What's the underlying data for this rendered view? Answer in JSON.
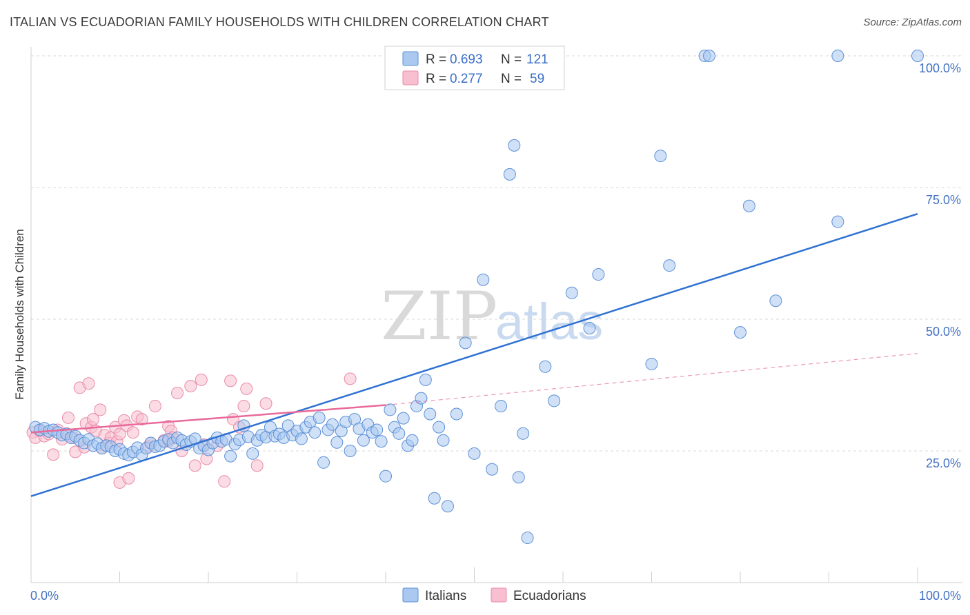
{
  "title": "ITALIAN VS ECUADORIAN FAMILY HOUSEHOLDS WITH CHILDREN CORRELATION CHART",
  "source": "Source: ZipAtlas.com",
  "watermark": {
    "zip": "ZIP",
    "atlas": "atlas"
  },
  "legend": {
    "r_label": "R =",
    "n_label": "N =",
    "rows": [
      {
        "series": "Italians",
        "r": "0.693",
        "n": "121"
      },
      {
        "series": "Ecuadorians",
        "r": "0.277",
        "n": "59"
      }
    ]
  },
  "colors": {
    "italians_fill": "#aac8f0",
    "italians_stroke": "#5a8fd6",
    "italians_line": "#2f72d2",
    "ecuadorians_fill": "#f7bfd0",
    "ecuadorians_stroke": "#e98aa8",
    "ecuadorians_line": "#e8699a",
    "grid": "#d8d8d8",
    "axis_tick_text": "#4472c4"
  },
  "chart_data": {
    "type": "scatter",
    "title": "ITALIAN VS ECUADORIAN FAMILY HOUSEHOLDS WITH CHILDREN CORRELATION CHART",
    "xlabel": "",
    "ylabel": "Family Households with Children",
    "xlim": [
      0,
      100
    ],
    "ylim": [
      0,
      100
    ],
    "x_tick_labels": [
      "0.0%",
      "100.0%"
    ],
    "y_ticks": [
      25,
      50,
      75,
      100
    ],
    "y_tick_labels": [
      "25.0%",
      "50.0%",
      "75.0%",
      "100.0%"
    ],
    "legend_bottom": [
      "Italians",
      "Ecuadorians"
    ],
    "series": [
      {
        "name": "Italians",
        "r": 0.693,
        "n": 121,
        "trend": {
          "x": [
            0,
            100
          ],
          "y": [
            16.4,
            70.0
          ],
          "style": "solid"
        },
        "points": [
          [
            0.5,
            29.5
          ],
          [
            1,
            29
          ],
          [
            1.5,
            29.3
          ],
          [
            2,
            28.7
          ],
          [
            2.5,
            29
          ],
          [
            3,
            28.5
          ],
          [
            3.5,
            28
          ],
          [
            4,
            28.2
          ],
          [
            4.5,
            27.5
          ],
          [
            5,
            27.8
          ],
          [
            5.5,
            27
          ],
          [
            6,
            26.5
          ],
          [
            6.5,
            27.2
          ],
          [
            7,
            26
          ],
          [
            7.5,
            26.4
          ],
          [
            8,
            25.5
          ],
          [
            8.5,
            26
          ],
          [
            9,
            25.8
          ],
          [
            9.5,
            25
          ],
          [
            10,
            25.3
          ],
          [
            10.5,
            24.5
          ],
          [
            11,
            24.2
          ],
          [
            11.5,
            24.8
          ],
          [
            12,
            25.6
          ],
          [
            12.5,
            24.3
          ],
          [
            13,
            25.5
          ],
          [
            13.5,
            26.5
          ],
          [
            14,
            25.8
          ],
          [
            14.5,
            26
          ],
          [
            15,
            26.8
          ],
          [
            15.5,
            27.2
          ],
          [
            16,
            26.5
          ],
          [
            16.5,
            27.5
          ],
          [
            17,
            27
          ],
          [
            17.5,
            26.2
          ],
          [
            18,
            26.8
          ],
          [
            18.5,
            27.3
          ],
          [
            19,
            25.5
          ],
          [
            19.5,
            26
          ],
          [
            20,
            25.2
          ],
          [
            20.5,
            26.5
          ],
          [
            21,
            27.5
          ],
          [
            21.5,
            26.8
          ],
          [
            22,
            27.2
          ],
          [
            22.5,
            24
          ],
          [
            23,
            26.3
          ],
          [
            23.5,
            27.1
          ],
          [
            24,
            29.8
          ],
          [
            24.5,
            27.7
          ],
          [
            25,
            24.5
          ],
          [
            25.5,
            27
          ],
          [
            26,
            28
          ],
          [
            26.5,
            27.6
          ],
          [
            27,
            29.5
          ],
          [
            27.5,
            27.8
          ],
          [
            28,
            28.2
          ],
          [
            28.5,
            27.5
          ],
          [
            29,
            29.8
          ],
          [
            29.5,
            28
          ],
          [
            30,
            28.8
          ],
          [
            30.5,
            27.3
          ],
          [
            31,
            29.5
          ],
          [
            31.5,
            30.5
          ],
          [
            32,
            28.5
          ],
          [
            32.5,
            31.3
          ],
          [
            33,
            22.8
          ],
          [
            33.5,
            29
          ],
          [
            34,
            30
          ],
          [
            34.5,
            26.6
          ],
          [
            35,
            28.8
          ],
          [
            35.5,
            30.5
          ],
          [
            36,
            25
          ],
          [
            36.5,
            31
          ],
          [
            37,
            29.2
          ],
          [
            37.5,
            27
          ],
          [
            38,
            30
          ],
          [
            38.5,
            28.5
          ],
          [
            39,
            29
          ],
          [
            39.5,
            26.8
          ],
          [
            40,
            20.2
          ],
          [
            40.5,
            32.8
          ],
          [
            41,
            29.5
          ],
          [
            41.5,
            28.3
          ],
          [
            42,
            31.2
          ],
          [
            42.5,
            26
          ],
          [
            43,
            27
          ],
          [
            43.5,
            33.5
          ],
          [
            44,
            35
          ],
          [
            44.5,
            38.5
          ],
          [
            45,
            32
          ],
          [
            45.5,
            16
          ],
          [
            46,
            29.5
          ],
          [
            46.5,
            27
          ],
          [
            47,
            14.5
          ],
          [
            48,
            32
          ],
          [
            49,
            45.5
          ],
          [
            50,
            24.5
          ],
          [
            51,
            57.5
          ],
          [
            52,
            21.5
          ],
          [
            53,
            33.5
          ],
          [
            54,
            77.5
          ],
          [
            54.5,
            83
          ],
          [
            55,
            20
          ],
          [
            55.5,
            28.3
          ],
          [
            58,
            41
          ],
          [
            59,
            34.5
          ],
          [
            61,
            55
          ],
          [
            63,
            48.3
          ],
          [
            64,
            58.5
          ],
          [
            70,
            41.5
          ],
          [
            71,
            81
          ],
          [
            72,
            60.2
          ],
          [
            80,
            47.5
          ],
          [
            81,
            71.5
          ],
          [
            84,
            53.5
          ],
          [
            91,
            68.5
          ],
          [
            76,
            100
          ],
          [
            76.5,
            100
          ],
          [
            91,
            100
          ],
          [
            100,
            100
          ],
          [
            56,
            8.5
          ]
        ]
      },
      {
        "name": "Ecuadorians",
        "r": 0.277,
        "n": 59,
        "trend": {
          "x": [
            0,
            40
          ],
          "y": [
            28.5,
            33.7
          ],
          "style": "solid"
        },
        "trend_extension": {
          "x": [
            40,
            100
          ],
          "y": [
            33.7,
            43.5
          ],
          "style": "dashed"
        },
        "points": [
          [
            0.2,
            28.5
          ],
          [
            0.5,
            27.5
          ],
          [
            1,
            28.8
          ],
          [
            1.5,
            27.8
          ],
          [
            2,
            28.2
          ],
          [
            2.5,
            24.3
          ],
          [
            3,
            29
          ],
          [
            3.5,
            27.2
          ],
          [
            4,
            28.3
          ],
          [
            4.2,
            31.3
          ],
          [
            4.8,
            27.5
          ],
          [
            5,
            24.8
          ],
          [
            5.5,
            37
          ],
          [
            6,
            25.7
          ],
          [
            6.2,
            30.2
          ],
          [
            6.5,
            37.8
          ],
          [
            6.8,
            29.5
          ],
          [
            7,
            31
          ],
          [
            7.3,
            28.8
          ],
          [
            7.8,
            32.8
          ],
          [
            8,
            25.5
          ],
          [
            8.3,
            28
          ],
          [
            8.8,
            26.5
          ],
          [
            9,
            27.5
          ],
          [
            9.5,
            29.5
          ],
          [
            9.7,
            26.8
          ],
          [
            10,
            28.2
          ],
          [
            10,
            19
          ],
          [
            10.5,
            30.8
          ],
          [
            10.8,
            29.8
          ],
          [
            11,
            19.8
          ],
          [
            11.5,
            28.5
          ],
          [
            12,
            31.5
          ],
          [
            12.5,
            31
          ],
          [
            13.5,
            26.5
          ],
          [
            13.2,
            25.8
          ],
          [
            14,
            33.5
          ],
          [
            15,
            27
          ],
          [
            15.5,
            26.8
          ],
          [
            15.5,
            29.7
          ],
          [
            15.8,
            28.8
          ],
          [
            16,
            27.5
          ],
          [
            16.5,
            36
          ],
          [
            17,
            25
          ],
          [
            18,
            37.3
          ],
          [
            18.5,
            22.2
          ],
          [
            19.2,
            38.5
          ],
          [
            19.5,
            26.2
          ],
          [
            19.8,
            23.5
          ],
          [
            21,
            26
          ],
          [
            21.8,
            19.2
          ],
          [
            22.5,
            38.3
          ],
          [
            22.8,
            31
          ],
          [
            23.5,
            29.5
          ],
          [
            24,
            33.5
          ],
          [
            24.3,
            36.8
          ],
          [
            25.5,
            22.2
          ],
          [
            26.5,
            34
          ],
          [
            36,
            38.7
          ]
        ]
      }
    ]
  }
}
